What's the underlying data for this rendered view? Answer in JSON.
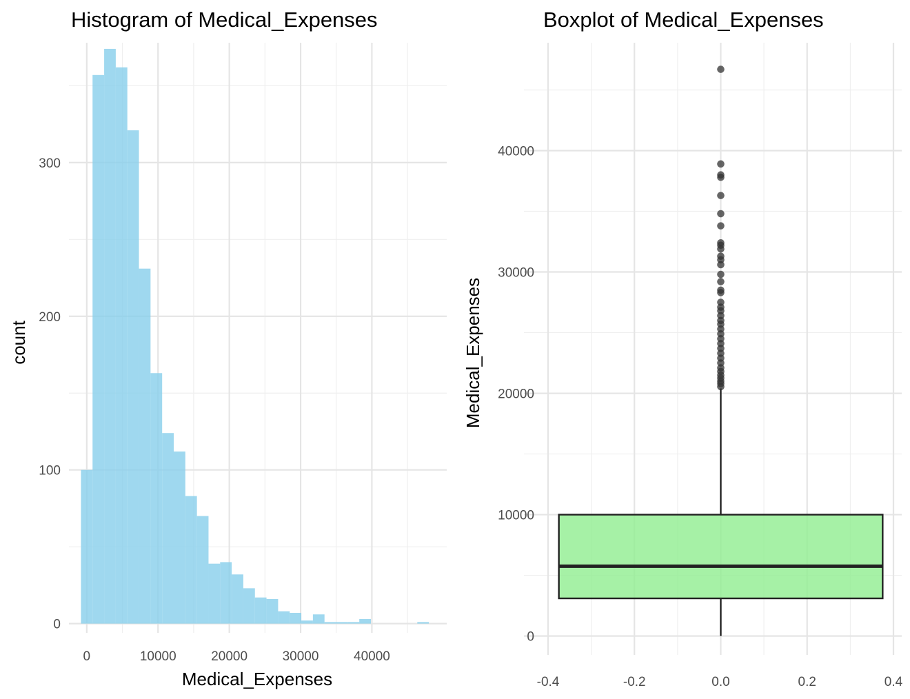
{
  "chart_data": [
    {
      "type": "histogram",
      "title": "Histogram of Medical_Expenses",
      "xlabel": "Medical_Expenses",
      "ylabel": "count",
      "xlim": [
        -2500,
        50500
      ],
      "ylim": [
        -6,
        378
      ],
      "x_ticks": [
        0,
        10000,
        20000,
        30000,
        40000
      ],
      "x_tick_labels": [
        "0",
        "10000",
        "20000",
        "30000",
        "40000"
      ],
      "y_ticks": [
        0,
        100,
        200,
        300
      ],
      "y_tick_labels": [
        "0",
        "100",
        "200",
        "300"
      ],
      "bin_width": 1627,
      "bin_start": -814,
      "counts": [
        100,
        357,
        374,
        362,
        321,
        231,
        163,
        124,
        112,
        83,
        70,
        39,
        40,
        32,
        23,
        17,
        16,
        8,
        7,
        2,
        6,
        1,
        1,
        1,
        3,
        0,
        0,
        0,
        0,
        1
      ],
      "fill_color": "#87ceeb",
      "grid": true
    },
    {
      "type": "boxplot",
      "title": "Boxplot of Medical_Expenses",
      "xlabel": "",
      "ylabel": "Medical_Expenses",
      "xlim": [
        -0.4,
        0.4
      ],
      "ylim": [
        -1500,
        47300
      ],
      "x_ticks": [
        -0.4,
        -0.2,
        0.0,
        0.2,
        0.4
      ],
      "x_tick_labels": [
        "-0.4",
        "-0.2",
        "0.0",
        "0.2",
        "0.4"
      ],
      "y_ticks": [
        0,
        10000,
        20000,
        30000,
        40000
      ],
      "y_tick_labels": [
        "0",
        "10000",
        "20000",
        "30000",
        "40000"
      ],
      "box": {
        "x_center": 0.0,
        "half_width": 0.375,
        "min": 0,
        "q1": 3100,
        "median": 5750,
        "q3": 10000,
        "whisker_high": 20400
      },
      "outliers": [
        20550,
        20800,
        21000,
        21250,
        21500,
        21800,
        22100,
        22500,
        22900,
        23300,
        23700,
        24100,
        24500,
        24900,
        25300,
        25700,
        26000,
        26400,
        26800,
        27100,
        27500,
        28300,
        28500,
        29200,
        29800,
        30600,
        31000,
        31300,
        31900,
        32200,
        32400,
        33800,
        34800,
        36300,
        37800,
        38000,
        38900,
        46700
      ],
      "fill_color": "#90ee90",
      "grid": true
    }
  ]
}
